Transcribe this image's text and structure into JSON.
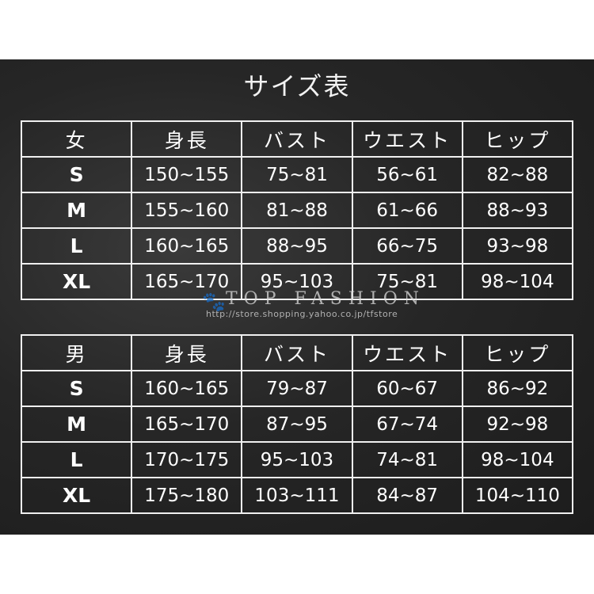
{
  "title": "サイズ表",
  "women": {
    "headers": [
      "女",
      "身長",
      "バスト",
      "ウエスト",
      "ヒップ"
    ],
    "rows": [
      [
        "S",
        "150~155",
        "75~81",
        "56~61",
        "82~88"
      ],
      [
        "M",
        "155~160",
        "81~88",
        "61~66",
        "88~93"
      ],
      [
        "L",
        "160~165",
        "88~95",
        "66~75",
        "93~98"
      ],
      [
        "XL",
        "165~170",
        "95~103",
        "75~81",
        "98~104"
      ]
    ]
  },
  "men": {
    "headers": [
      "男",
      "身長",
      "バスト",
      "ウエスト",
      "ヒップ"
    ],
    "rows": [
      [
        "S",
        "160~165",
        "79~87",
        "60~67",
        "86~92"
      ],
      [
        "M",
        "165~170",
        "87~95",
        "67~74",
        "92~98"
      ],
      [
        "L",
        "170~175",
        "95~103",
        "74~81",
        "98~104"
      ],
      [
        "XL",
        "175~180",
        "103~111",
        "84~87",
        "104~110"
      ]
    ]
  },
  "watermark": {
    "brand": "TOP FASHION",
    "url": "http://store.shopping.yahoo.co.jp/tfstore"
  }
}
